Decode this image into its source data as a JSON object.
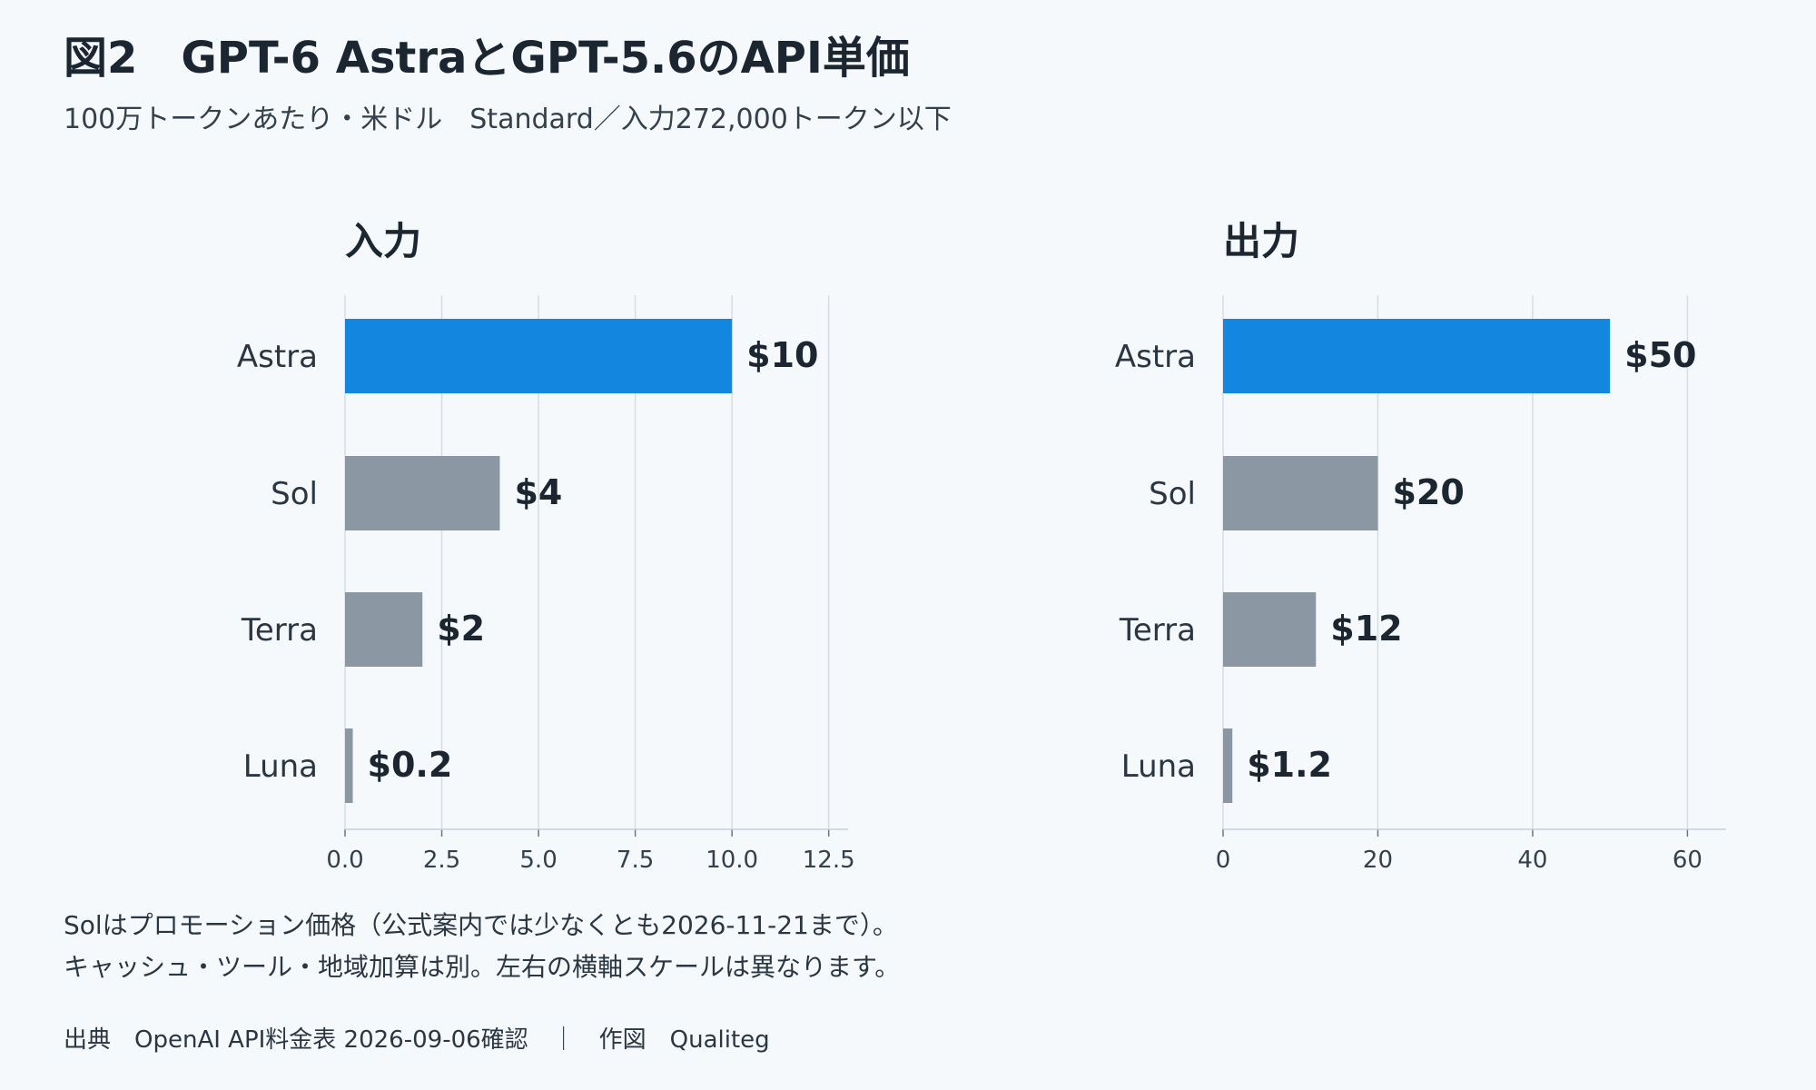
{
  "figure": {
    "title": "図2　GPT-6 AstraとGPT-5.6のAPI単価",
    "subtitle": "100万トークンあたり・米ドル　Standard／入力272,000トークン以下",
    "notes": [
      "Solはプロモーション価格（公式案内では少なくとも2026-11-21まで）。",
      "キャッシュ・ツール・地域加算は別。左右の横軸スケールは異なります。"
    ],
    "source": "出典　OpenAI API料金表 2026-09-06確認　｜　作図　Qualiteg"
  },
  "colors": {
    "highlight": "#1386df",
    "default": "#8c97a4",
    "grid": "#d8dde3",
    "text": "#1b2631"
  },
  "chart_data": [
    {
      "type": "bar",
      "orientation": "horizontal",
      "title": "入力",
      "categories": [
        "Astra",
        "Sol",
        "Terra",
        "Luna"
      ],
      "values": [
        10,
        4,
        2,
        0.2
      ],
      "value_labels": [
        "$10",
        "$4",
        "$2",
        "$0.2"
      ],
      "highlight": "Astra",
      "xlim": [
        0,
        13
      ],
      "xticks": [
        0,
        2.5,
        5,
        7.5,
        10,
        12.5
      ],
      "xtick_labels": [
        "0.0",
        "2.5",
        "5.0",
        "7.5",
        "10.0",
        "12.5"
      ],
      "grid": true
    },
    {
      "type": "bar",
      "orientation": "horizontal",
      "title": "出力",
      "categories": [
        "Astra",
        "Sol",
        "Terra",
        "Luna"
      ],
      "values": [
        50,
        20,
        12,
        1.2
      ],
      "value_labels": [
        "$50",
        "$20",
        "$12",
        "$1.2"
      ],
      "highlight": "Astra",
      "xlim": [
        0,
        65
      ],
      "xticks": [
        0,
        20,
        40,
        60
      ],
      "xtick_labels": [
        "0",
        "20",
        "40",
        "60"
      ],
      "grid": true
    }
  ]
}
